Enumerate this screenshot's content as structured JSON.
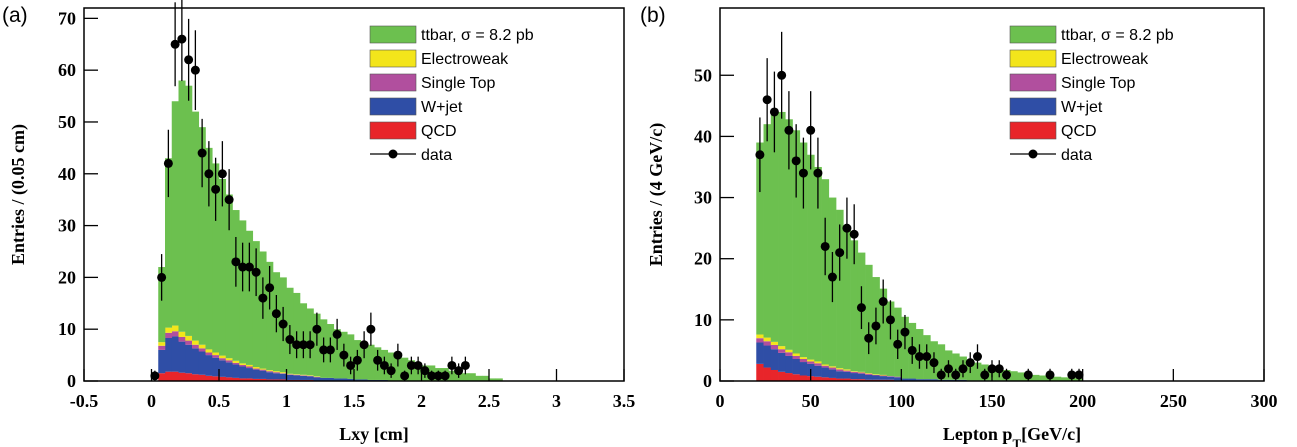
{
  "chart_data": [
    {
      "type": "histogram",
      "panel_label": "(a)",
      "xlabel": [
        "Lxy [cm]"
      ],
      "ylabel": "Entries / (0.05 cm)",
      "xlim": [
        -0.5,
        3.5
      ],
      "ylim": [
        0,
        72
      ],
      "xticks": [
        -0.5,
        0,
        0.5,
        1,
        1.5,
        2,
        2.5,
        3,
        3.5
      ],
      "yticks": [
        0,
        10,
        20,
        30,
        40,
        50,
        60,
        70
      ],
      "legend": "upper right",
      "bins": [
        0,
        0.05,
        0.1,
        0.15,
        0.2,
        0.25,
        0.3,
        0.35,
        0.4,
        0.45,
        0.5,
        0.55,
        0.6,
        0.65,
        0.7,
        0.75,
        0.8,
        0.85,
        0.9,
        0.95,
        1,
        1.05,
        1.1,
        1.15,
        1.2,
        1.25,
        1.3,
        1.35,
        1.4,
        1.45,
        1.5,
        1.55,
        1.6,
        1.65,
        1.7,
        1.75,
        1.8,
        1.85,
        1.9,
        1.95,
        2,
        2.05,
        2.1,
        2.15,
        2.2,
        2.25,
        2.3,
        2.35,
        2.4,
        2.45,
        2.5,
        2.55,
        2.6
      ],
      "series": [
        {
          "name": "ttbar, σ = 8.2 pb",
          "color": "#6cc04f",
          "values": [
            0,
            14.5,
            32.7,
            43.3,
            48.5,
            48.3,
            44.2,
            42,
            38.9,
            36.5,
            34.1,
            31.6,
            29.1,
            27.6,
            25.9,
            24.3,
            22.6,
            20.9,
            19.1,
            18.3,
            16.6,
            15.7,
            13.8,
            12.9,
            12.1,
            11.3,
            10.4,
            9.5,
            9,
            8.6,
            7.6,
            7.2,
            6.8,
            6.3,
            5.8,
            5.4,
            4.9,
            4.4,
            3.9,
            3.4,
            3,
            3,
            2.5,
            2.5,
            2,
            2,
            1.5,
            1.5,
            1,
            1,
            0.5,
            0.5
          ]
        },
        {
          "name": "Electroweak",
          "color": "#f3e51b",
          "values": [
            0,
            0.7,
            1,
            1.1,
            1,
            0.9,
            0.8,
            0.7,
            0.6,
            0.5,
            0.5,
            0.4,
            0.4,
            0.3,
            0.3,
            0.3,
            0.2,
            0.2,
            0.2,
            0.2,
            0.1,
            0.1,
            0.1,
            0.1,
            0.1,
            0,
            0,
            0,
            0,
            0,
            0,
            0,
            0,
            0,
            0,
            0,
            0,
            0,
            0,
            0,
            0,
            0,
            0,
            0,
            0,
            0,
            0,
            0,
            0,
            0,
            0,
            0
          ]
        },
        {
          "name": "Single Top",
          "color": "#b14f9e",
          "values": [
            0,
            0.8,
            1,
            1,
            0.9,
            0.8,
            0.7,
            0.6,
            0.5,
            0.5,
            0.4,
            0.4,
            0.3,
            0.3,
            0.3,
            0.2,
            0.2,
            0.2,
            0.2,
            0.1,
            0.1,
            0.1,
            0.1,
            0.1,
            0.1,
            0,
            0,
            0,
            0,
            0,
            0,
            0,
            0,
            0,
            0,
            0,
            0,
            0,
            0,
            0,
            0,
            0,
            0,
            0,
            0,
            0,
            0,
            0,
            0,
            0,
            0,
            0
          ]
        },
        {
          "name": "W+jet",
          "color": "#2f4ea6",
          "values": [
            0,
            4.5,
            6.5,
            6.8,
            6,
            5.5,
            5,
            4.5,
            4,
            3.6,
            3.2,
            2.9,
            2.6,
            2.3,
            2,
            1.8,
            1.6,
            1.4,
            1.2,
            1.1,
            1,
            0.9,
            0.8,
            0.7,
            0.6,
            0.5,
            0.5,
            0.4,
            0.4,
            0.3,
            0.3,
            0.3,
            0.2,
            0.2,
            0.2,
            0.1,
            0.1,
            0.1,
            0.1,
            0.1,
            0,
            0,
            0,
            0,
            0,
            0,
            0,
            0,
            0,
            0,
            0,
            0
          ]
        },
        {
          "name": "QCD",
          "color": "#e8252a",
          "values": [
            0,
            1.5,
            1.8,
            1.8,
            1.6,
            1.5,
            1.3,
            1.2,
            1,
            0.9,
            0.8,
            0.7,
            0.6,
            0.5,
            0.5,
            0.4,
            0.4,
            0.3,
            0.3,
            0.3,
            0.2,
            0.2,
            0.2,
            0.2,
            0.1,
            0.1,
            0.1,
            0.1,
            0.1,
            0.1,
            0,
            0,
            0,
            0,
            0,
            0,
            0,
            0,
            0,
            0,
            0,
            0,
            0,
            0,
            0,
            0,
            0,
            0,
            0,
            0,
            0,
            0
          ]
        }
      ],
      "data": {
        "name": "data",
        "color": "#000000",
        "values": [
          1,
          20,
          42,
          65,
          66,
          62,
          60,
          44,
          40,
          37,
          40,
          35,
          23,
          22,
          22,
          21,
          16,
          18,
          13,
          11,
          8,
          7,
          7,
          7,
          10,
          6,
          6,
          9,
          5,
          3,
          4,
          7,
          10,
          4,
          3,
          2,
          5,
          1,
          3,
          3,
          2,
          1,
          1,
          1,
          3,
          2,
          3,
          null,
          null,
          null,
          null,
          null
        ],
        "errors": [
          1,
          4.5,
          6.5,
          8.1,
          8.1,
          7.9,
          7.7,
          6.6,
          6.3,
          6.1,
          6.3,
          5.9,
          4.8,
          4.7,
          4.7,
          4.6,
          4,
          4.2,
          3.6,
          3.3,
          2.8,
          2.6,
          2.6,
          2.6,
          3.2,
          2.4,
          2.4,
          3,
          2.2,
          1.7,
          2,
          2.6,
          3.2,
          2,
          1.7,
          1.4,
          2.2,
          1,
          1.7,
          1.7,
          1.4,
          1,
          1,
          1,
          1.7,
          1.4,
          1.7,
          null,
          null,
          null,
          null,
          null
        ]
      }
    },
    {
      "type": "histogram",
      "panel_label": "(b)",
      "xlabel": [
        "Lepton p",
        "T",
        "[GeV/c]"
      ],
      "ylabel": "Entries / (4 GeV/c)",
      "xlim": [
        0,
        300
      ],
      "ylim": [
        0,
        61
      ],
      "xticks": [
        0,
        50,
        100,
        150,
        200,
        250,
        300
      ],
      "yticks": [
        0,
        10,
        20,
        30,
        40,
        50
      ],
      "legend": "upper right",
      "bins": [
        20,
        24,
        28,
        32,
        36,
        40,
        44,
        48,
        52,
        56,
        60,
        64,
        68,
        72,
        76,
        80,
        84,
        88,
        92,
        96,
        100,
        104,
        108,
        112,
        116,
        120,
        124,
        128,
        132,
        136,
        140,
        144,
        148,
        152,
        156,
        160,
        164,
        168,
        172,
        176,
        180,
        184,
        188,
        192,
        196,
        200
      ],
      "series": [
        {
          "name": "ttbar, σ = 8.2 pb",
          "color": "#6cc04f",
          "values": [
            31.4,
            34.9,
            37.6,
            38.3,
            37.7,
            36.5,
            35.1,
            33.5,
            31.8,
            30.3,
            27.6,
            25.9,
            23.1,
            21.4,
            19.5,
            17.7,
            15.9,
            14.1,
            12.2,
            11.3,
            10.1,
            9.1,
            8.2,
            7.2,
            6.2,
            5.8,
            4.8,
            4.3,
            3.8,
            3.4,
            2.9,
            2.6,
            2.3,
            2,
            1.7,
            1.6,
            1.4,
            1.2,
            1,
            0.9,
            0.8,
            0.7,
            0.6,
            0.5,
            0.4
          ]
        },
        {
          "name": "Electroweak",
          "color": "#f3e51b",
          "values": [
            0.6,
            0.6,
            0.5,
            0.5,
            0.4,
            0.4,
            0.3,
            0.3,
            0.3,
            0.2,
            0.2,
            0.2,
            0.2,
            0.1,
            0.1,
            0.1,
            0.1,
            0.1,
            0,
            0,
            0,
            0,
            0,
            0,
            0,
            0,
            0,
            0,
            0,
            0,
            0,
            0,
            0,
            0,
            0,
            0,
            0,
            0,
            0,
            0,
            0,
            0,
            0,
            0,
            0
          ]
        },
        {
          "name": "Single Top",
          "color": "#b14f9e",
          "values": [
            0.7,
            0.7,
            0.7,
            0.6,
            0.6,
            0.5,
            0.5,
            0.4,
            0.4,
            0.3,
            0.3,
            0.3,
            0.2,
            0.2,
            0.2,
            0.2,
            0.1,
            0.1,
            0.1,
            0.1,
            0,
            0,
            0,
            0,
            0,
            0,
            0,
            0,
            0,
            0,
            0,
            0,
            0,
            0,
            0,
            0,
            0,
            0,
            0,
            0,
            0,
            0,
            0,
            0,
            0
          ]
        },
        {
          "name": "W+jet",
          "color": "#2f4ea6",
          "values": [
            3.5,
            3.6,
            3.4,
            3.1,
            2.8,
            2.5,
            2.2,
            2,
            1.8,
            1.6,
            1.4,
            1.2,
            1.1,
            1,
            0.9,
            0.8,
            0.7,
            0.6,
            0.5,
            0.5,
            0.4,
            0.4,
            0.3,
            0.3,
            0.3,
            0.2,
            0.2,
            0.2,
            0.2,
            0.1,
            0.1,
            0.1,
            0.1,
            0.1,
            0.1,
            0,
            0,
            0,
            0,
            0,
            0,
            0,
            0,
            0,
            0
          ]
        },
        {
          "name": "QCD",
          "color": "#e8252a",
          "values": [
            2.8,
            2.2,
            1.8,
            1.5,
            1.3,
            1.1,
            0.9,
            0.8,
            0.7,
            0.6,
            0.5,
            0.4,
            0.4,
            0.3,
            0.3,
            0.2,
            0.2,
            0.2,
            0.2,
            0.1,
            0,
            0,
            0,
            0,
            0,
            0,
            0,
            0,
            0,
            0,
            0,
            0,
            0,
            0,
            0,
            0,
            0,
            0,
            0,
            0,
            0,
            0,
            0,
            0,
            0
          ]
        }
      ],
      "data": {
        "name": "data",
        "color": "#000000",
        "values": [
          37,
          46,
          44,
          50,
          41,
          36,
          34,
          41,
          34,
          22,
          17,
          21,
          25,
          24,
          12,
          7,
          9,
          13,
          10,
          6,
          8,
          5,
          4,
          4,
          3,
          1,
          2,
          1,
          2,
          3,
          4,
          1,
          2,
          2,
          1,
          null,
          null,
          1,
          null,
          null,
          1,
          null,
          null,
          1,
          1
        ],
        "errors": [
          6.1,
          6.8,
          6.6,
          7.1,
          6.4,
          6,
          5.8,
          6.4,
          5.8,
          4.7,
          4.1,
          4.6,
          5,
          4.9,
          3.5,
          2.6,
          3,
          3.6,
          3.2,
          2.4,
          2.8,
          2.2,
          2,
          2,
          1.7,
          1,
          1.4,
          1,
          1.4,
          1.7,
          2,
          1,
          1.4,
          1.4,
          1,
          null,
          null,
          1,
          null,
          null,
          1,
          null,
          null,
          1,
          1
        ]
      }
    }
  ]
}
